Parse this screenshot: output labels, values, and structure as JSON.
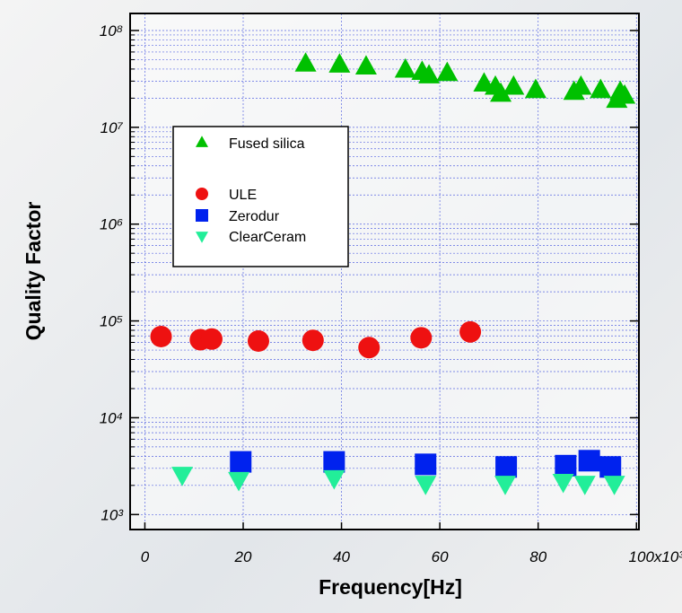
{
  "chart_data": {
    "type": "scatter",
    "x_label": "Frequency[Hz]",
    "y_label": "Quality Factor",
    "xlim": [
      -3,
      100.5
    ],
    "ylim": [
      700,
      150000000
    ],
    "log_y": true,
    "grid": true,
    "minor_grid": true,
    "xticks": [
      0,
      20,
      40,
      60,
      80,
      {
        "value": 100,
        "label": "100x10³"
      }
    ],
    "yticks": [
      {
        "value": 1000,
        "label": "10³"
      },
      {
        "value": 10000,
        "label": "10⁴"
      },
      {
        "value": 100000,
        "label": "10⁵"
      },
      {
        "value": 1000000,
        "label": "10⁶"
      },
      {
        "value": 10000000,
        "label": "10⁷"
      },
      {
        "value": 100000000,
        "label": "10⁸"
      }
    ],
    "legend": "upper left",
    "series": [
      {
        "name": "Fused silica",
        "color": "#00c000",
        "marker": "triangle-up",
        "x": [
          32.7,
          39.6,
          45,
          53,
          56.4,
          57.8,
          61.5,
          69,
          71.3,
          72.4,
          75,
          79.5,
          87.3,
          88.7,
          92.7,
          96.7,
          96,
          97.6
        ],
        "values": [
          45000000,
          44000000,
          42000000,
          39000000,
          37000000,
          34000000,
          36000000,
          28000000,
          26000000,
          22000000,
          26000000,
          24000000,
          23000000,
          26000000,
          24000000,
          23000000,
          19000000,
          21000000
        ]
      },
      {
        "name": "ULE",
        "color": "#ee1111",
        "marker": "circle",
        "x": [
          3.3,
          11.3,
          13.6,
          23.1,
          34.2,
          45.6,
          56.2,
          66.2
        ],
        "values": [
          69000,
          64000,
          65000,
          62000,
          63000,
          53000,
          67000,
          77000
        ]
      },
      {
        "name": "Zerodur",
        "color": "#0022ee",
        "marker": "square",
        "x": [
          19.5,
          38.5,
          57.1,
          73.5,
          85.6,
          90.4,
          94.7
        ],
        "values": [
          3500,
          3500,
          3300,
          3100,
          3200,
          3600,
          3100
        ]
      },
      {
        "name": "ClearCeram",
        "color": "#22ee99",
        "marker": "triangle-down",
        "x": [
          7.6,
          19.1,
          38.5,
          57.1,
          73.3,
          85.1,
          89.5,
          95.5
        ],
        "values": [
          2600,
          2300,
          2400,
          2100,
          2100,
          2200,
          2100,
          2100
        ]
      }
    ]
  }
}
